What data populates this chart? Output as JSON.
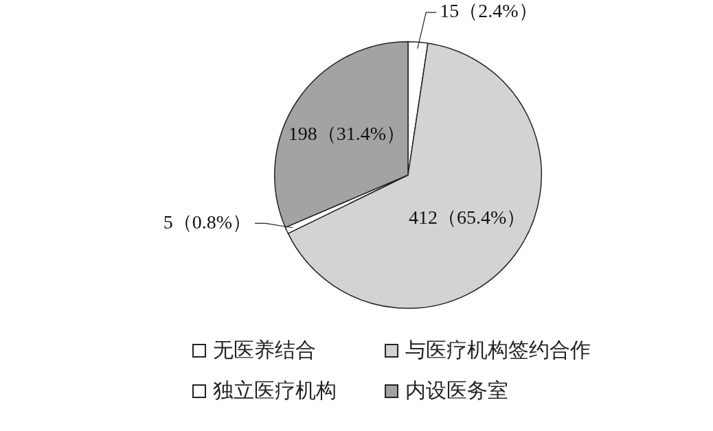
{
  "chart_data": {
    "type": "pie",
    "categories": [
      "无医养结合",
      "与医疗机构签约合作",
      "独立医疗机构",
      "内设医务室"
    ],
    "values": [
      15,
      412,
      5,
      198
    ],
    "colors": [
      "#ffffff",
      "#d3d3d3",
      "#ffffff",
      "#a3a3a3"
    ],
    "value_labels": [
      "15（2.4%）",
      "412（65.4%）",
      "5（0.8%）",
      "198（31.4%）"
    ],
    "legend": "bottom"
  }
}
